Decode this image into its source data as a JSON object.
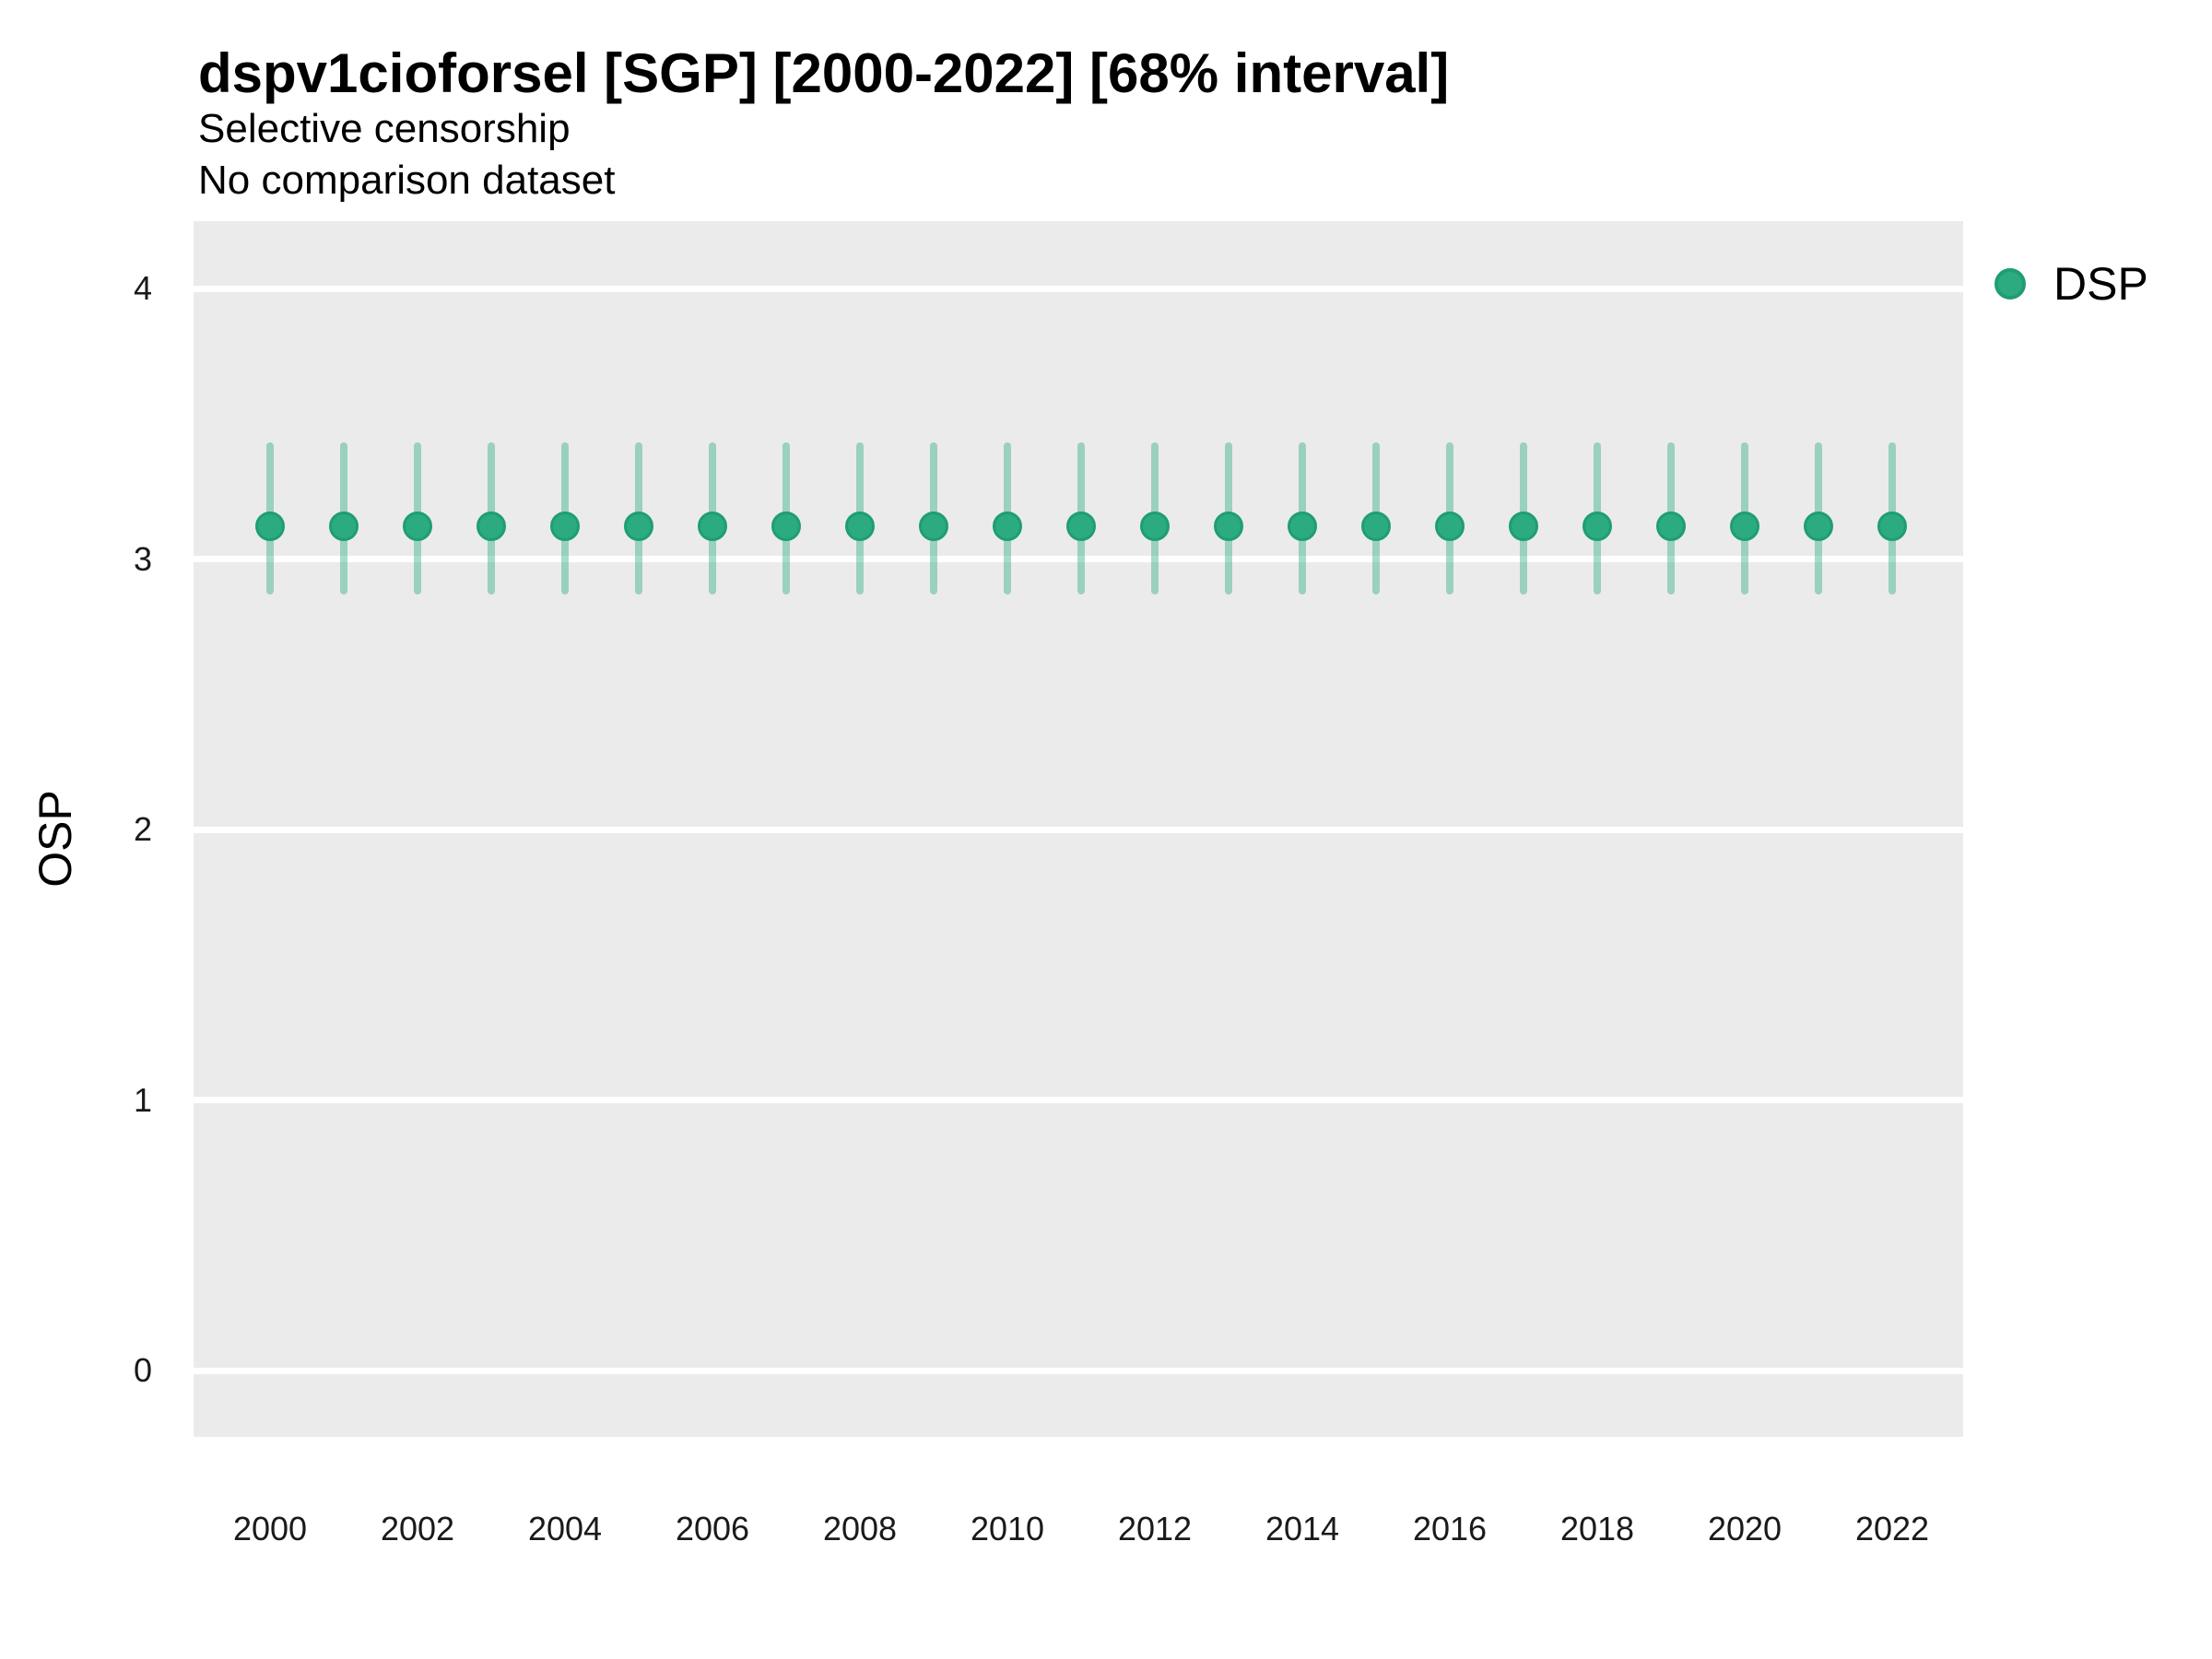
{
  "header": {
    "title": "dspv1cioforsel [SGP] [2000-2022] [68% interval]",
    "subtitle1": "Selective censorship",
    "subtitle2": "No comparison dataset"
  },
  "axes": {
    "y_label": "OSP",
    "y_ticks": [
      4,
      3,
      2,
      1,
      0
    ],
    "x_ticks": [
      2000,
      2002,
      2004,
      2006,
      2008,
      2010,
      2012,
      2014,
      2016,
      2018,
      2020,
      2022
    ]
  },
  "legend": {
    "items": [
      {
        "label": "DSP",
        "color": "#2CAB81",
        "stroke": "#1E9E71"
      }
    ]
  },
  "colors": {
    "point_fill": "#2CAB81",
    "point_stroke": "#1E9E71",
    "interval": "rgba(44,171,129,0.42)",
    "panel_bg": "#EBEBEB",
    "gridline": "#FFFFFF",
    "tick_text": "#1A1A1A"
  },
  "chart_data": {
    "type": "scatter",
    "subtype": "pointrange",
    "title": "dspv1cioforsel [SGP] [2000-2022] [68% interval]",
    "subtitle": "Selective censorship — No comparison dataset",
    "xlabel": "",
    "ylabel": "OSP",
    "interval_level": "68%",
    "ylim": [
      -0.25,
      4.25
    ],
    "xlim": [
      1999,
      2023
    ],
    "grid": "horizontal-major-only",
    "legend_position": "right",
    "x": [
      2000,
      2001,
      2002,
      2003,
      2004,
      2005,
      2006,
      2007,
      2008,
      2009,
      2010,
      2011,
      2012,
      2013,
      2014,
      2015,
      2016,
      2017,
      2018,
      2019,
      2020,
      2021,
      2022
    ],
    "series": [
      {
        "name": "DSP",
        "values": [
          3.12,
          3.12,
          3.12,
          3.12,
          3.12,
          3.12,
          3.12,
          3.12,
          3.12,
          3.12,
          3.12,
          3.12,
          3.12,
          3.12,
          3.12,
          3.12,
          3.12,
          3.12,
          3.12,
          3.12,
          3.12,
          3.12,
          3.12
        ],
        "lower": [
          2.87,
          2.87,
          2.87,
          2.87,
          2.87,
          2.87,
          2.87,
          2.87,
          2.87,
          2.87,
          2.87,
          2.87,
          2.87,
          2.87,
          2.87,
          2.87,
          2.87,
          2.87,
          2.87,
          2.87,
          2.87,
          2.87,
          2.87
        ],
        "upper": [
          3.43,
          3.43,
          3.43,
          3.43,
          3.43,
          3.43,
          3.43,
          3.43,
          3.43,
          3.43,
          3.43,
          3.43,
          3.43,
          3.43,
          3.43,
          3.43,
          3.43,
          3.43,
          3.43,
          3.43,
          3.43,
          3.43,
          3.43
        ]
      }
    ]
  }
}
